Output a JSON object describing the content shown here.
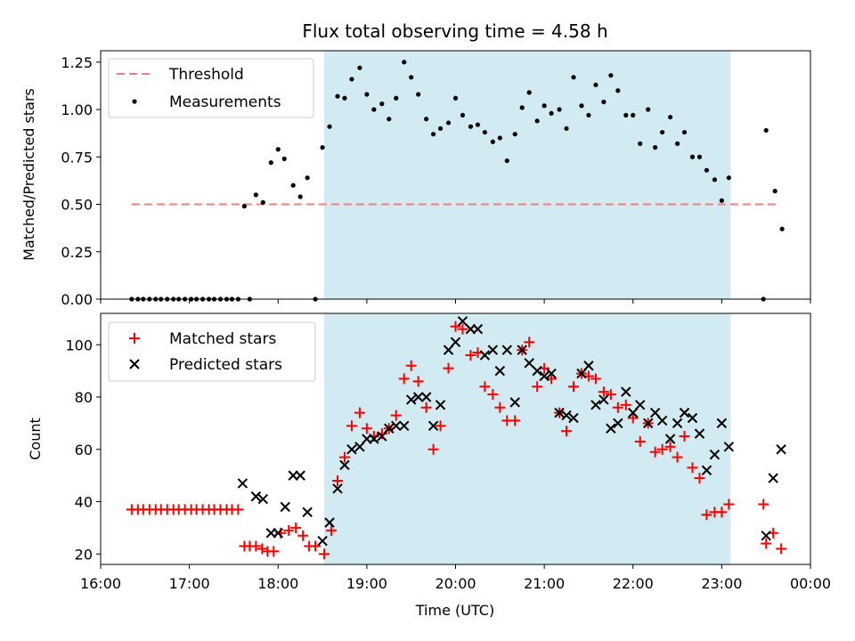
{
  "chart_data": {
    "title": "Flux total observing time = 4.58 h",
    "xlabel": "Time (UTC)",
    "x_unit": "hours UTC",
    "xlim": [
      16.0,
      24.0
    ],
    "x_ticks": [
      {
        "value": 16,
        "label": "16:00"
      },
      {
        "value": 17,
        "label": "17:00"
      },
      {
        "value": 18,
        "label": "18:00"
      },
      {
        "value": 19,
        "label": "19:00"
      },
      {
        "value": 20,
        "label": "20:00"
      },
      {
        "value": 21,
        "label": "21:00"
      },
      {
        "value": 22,
        "label": "22:00"
      },
      {
        "value": 23,
        "label": "23:00"
      },
      {
        "value": 24,
        "label": "00:00"
      }
    ],
    "shaded_span": {
      "start": 18.52,
      "end": 23.1,
      "color": "#add8e6"
    },
    "panels": [
      {
        "type": "scatter",
        "ylabel": "Matched/Predicted stars",
        "ylim": [
          0,
          1.31
        ],
        "y_ticks": [
          "0.00",
          "0.25",
          "0.50",
          "0.75",
          "1.00",
          "1.25"
        ],
        "y_tick_values": [
          0,
          0.25,
          0.5,
          0.75,
          1.0,
          1.25
        ],
        "legend": [
          {
            "label": "Threshold",
            "marker": "dashed-line",
            "color": "#f08080"
          },
          {
            "label": "Measurements",
            "marker": "dot",
            "color": "#000000"
          }
        ],
        "legend_position": "top-left",
        "threshold": {
          "value": 0.5,
          "x_range": [
            16.35,
            23.65
          ],
          "color": "#f08080"
        },
        "measurements": [
          [
            16.35,
            0
          ],
          [
            16.42,
            0
          ],
          [
            16.48,
            0
          ],
          [
            16.55,
            0
          ],
          [
            16.62,
            0
          ],
          [
            16.68,
            0
          ],
          [
            16.75,
            0
          ],
          [
            16.82,
            0
          ],
          [
            16.88,
            0
          ],
          [
            16.95,
            0
          ],
          [
            17.02,
            0
          ],
          [
            17.08,
            0
          ],
          [
            17.15,
            0
          ],
          [
            17.22,
            0
          ],
          [
            17.28,
            0
          ],
          [
            17.35,
            0
          ],
          [
            17.42,
            0
          ],
          [
            17.48,
            0
          ],
          [
            17.55,
            0
          ],
          [
            17.62,
            0.49
          ],
          [
            17.68,
            0
          ],
          [
            17.75,
            0.55
          ],
          [
            17.83,
            0.51
          ],
          [
            17.92,
            0.72
          ],
          [
            18.0,
            0.79
          ],
          [
            18.07,
            0.74
          ],
          [
            18.17,
            0.6
          ],
          [
            18.25,
            0.54
          ],
          [
            18.33,
            0.64
          ],
          [
            18.42,
            0
          ],
          [
            18.5,
            0.8
          ],
          [
            18.58,
            0.91
          ],
          [
            18.67,
            1.07
          ],
          [
            18.75,
            1.06
          ],
          [
            18.83,
            1.16
          ],
          [
            18.92,
            1.22
          ],
          [
            19.0,
            1.08
          ],
          [
            19.08,
            1.0
          ],
          [
            19.17,
            1.03
          ],
          [
            19.25,
            0.95
          ],
          [
            19.33,
            1.06
          ],
          [
            19.42,
            1.25
          ],
          [
            19.5,
            1.17
          ],
          [
            19.58,
            1.08
          ],
          [
            19.67,
            0.95
          ],
          [
            19.75,
            0.87
          ],
          [
            19.83,
            0.9
          ],
          [
            19.92,
            0.93
          ],
          [
            20.0,
            1.06
          ],
          [
            20.08,
            0.97
          ],
          [
            20.17,
            0.91
          ],
          [
            20.25,
            0.92
          ],
          [
            20.33,
            0.88
          ],
          [
            20.42,
            0.83
          ],
          [
            20.5,
            0.85
          ],
          [
            20.58,
            0.73
          ],
          [
            20.67,
            0.87
          ],
          [
            20.75,
            1.01
          ],
          [
            20.83,
            1.09
          ],
          [
            20.92,
            0.94
          ],
          [
            21.0,
            1.02
          ],
          [
            21.08,
            0.98
          ],
          [
            21.17,
            1.0
          ],
          [
            21.25,
            0.9
          ],
          [
            21.33,
            1.17
          ],
          [
            21.42,
            1.02
          ],
          [
            21.5,
            0.97
          ],
          [
            21.58,
            1.13
          ],
          [
            21.67,
            1.04
          ],
          [
            21.75,
            1.18
          ],
          [
            21.83,
            1.1
          ],
          [
            21.92,
            0.97
          ],
          [
            22.0,
            0.97
          ],
          [
            22.08,
            0.82
          ],
          [
            22.17,
            1.0
          ],
          [
            22.25,
            0.8
          ],
          [
            22.33,
            0.88
          ],
          [
            22.42,
            0.96
          ],
          [
            22.5,
            0.82
          ],
          [
            22.58,
            0.88
          ],
          [
            22.67,
            0.75
          ],
          [
            22.75,
            0.75
          ],
          [
            22.83,
            0.68
          ],
          [
            22.92,
            0.63
          ],
          [
            23.0,
            0.52
          ],
          [
            23.08,
            0.64
          ],
          [
            23.47,
            0
          ],
          [
            23.5,
            0.89
          ],
          [
            23.6,
            0.57
          ],
          [
            23.68,
            0.37
          ]
        ]
      },
      {
        "type": "scatter",
        "ylabel": "Count",
        "ylim": [
          16,
          112
        ],
        "y_ticks": [
          "20",
          "40",
          "60",
          "80",
          "100"
        ],
        "y_tick_values": [
          20,
          40,
          60,
          80,
          100
        ],
        "legend": [
          {
            "label": "Matched stars",
            "marker": "plus",
            "color": "#ff0000"
          },
          {
            "label": "Predicted stars",
            "marker": "x",
            "color": "#000000"
          }
        ],
        "legend_position": "top-left",
        "matched": [
          [
            16.35,
            37
          ],
          [
            16.42,
            37
          ],
          [
            16.48,
            37
          ],
          [
            16.55,
            37
          ],
          [
            16.62,
            37
          ],
          [
            16.68,
            37
          ],
          [
            16.75,
            37
          ],
          [
            16.82,
            37
          ],
          [
            16.88,
            37
          ],
          [
            16.95,
            37
          ],
          [
            17.02,
            37
          ],
          [
            17.08,
            37
          ],
          [
            17.15,
            37
          ],
          [
            17.22,
            37
          ],
          [
            17.28,
            37
          ],
          [
            17.35,
            37
          ],
          [
            17.42,
            37
          ],
          [
            17.48,
            37
          ],
          [
            17.55,
            37
          ],
          [
            17.62,
            23
          ],
          [
            17.68,
            23
          ],
          [
            17.75,
            23
          ],
          [
            17.82,
            22
          ],
          [
            17.88,
            21
          ],
          [
            17.95,
            21
          ],
          [
            18.03,
            28
          ],
          [
            18.12,
            29
          ],
          [
            18.2,
            30
          ],
          [
            18.28,
            27
          ],
          [
            18.35,
            23
          ],
          [
            18.42,
            23
          ],
          [
            18.52,
            20
          ],
          [
            18.6,
            29
          ],
          [
            18.67,
            48
          ],
          [
            18.75,
            57
          ],
          [
            18.83,
            69
          ],
          [
            18.92,
            74
          ],
          [
            19.0,
            68
          ],
          [
            19.08,
            65
          ],
          [
            19.17,
            66
          ],
          [
            19.25,
            68
          ],
          [
            19.33,
            73
          ],
          [
            19.42,
            87
          ],
          [
            19.5,
            92
          ],
          [
            19.58,
            86
          ],
          [
            19.67,
            76
          ],
          [
            19.75,
            60
          ],
          [
            19.83,
            69
          ],
          [
            19.92,
            91
          ],
          [
            20.0,
            107
          ],
          [
            20.08,
            106
          ],
          [
            20.17,
            96
          ],
          [
            20.25,
            97
          ],
          [
            20.33,
            84
          ],
          [
            20.42,
            81
          ],
          [
            20.5,
            76
          ],
          [
            20.58,
            71
          ],
          [
            20.67,
            71
          ],
          [
            20.75,
            98
          ],
          [
            20.83,
            101
          ],
          [
            20.92,
            84
          ],
          [
            21.0,
            91
          ],
          [
            21.08,
            87
          ],
          [
            21.17,
            74
          ],
          [
            21.25,
            67
          ],
          [
            21.33,
            84
          ],
          [
            21.42,
            89
          ],
          [
            21.5,
            88
          ],
          [
            21.58,
            87
          ],
          [
            21.67,
            82
          ],
          [
            21.75,
            81
          ],
          [
            21.83,
            76
          ],
          [
            21.92,
            77
          ],
          [
            22.0,
            72
          ],
          [
            22.08,
            63
          ],
          [
            22.17,
            70
          ],
          [
            22.25,
            59
          ],
          [
            22.33,
            60
          ],
          [
            22.42,
            61
          ],
          [
            22.5,
            57
          ],
          [
            22.58,
            65
          ],
          [
            22.67,
            53
          ],
          [
            22.75,
            49
          ],
          [
            22.83,
            35
          ],
          [
            22.92,
            36
          ],
          [
            23.0,
            36
          ],
          [
            23.08,
            39
          ],
          [
            23.47,
            39
          ],
          [
            23.5,
            24
          ],
          [
            23.58,
            28
          ],
          [
            23.67,
            22
          ]
        ],
        "predicted": [
          [
            17.6,
            47
          ],
          [
            17.75,
            42
          ],
          [
            17.83,
            41
          ],
          [
            17.92,
            28
          ],
          [
            18.0,
            28
          ],
          [
            18.08,
            38
          ],
          [
            18.17,
            50
          ],
          [
            18.25,
            50
          ],
          [
            18.33,
            36
          ],
          [
            18.5,
            25
          ],
          [
            18.58,
            32
          ],
          [
            18.67,
            45
          ],
          [
            18.75,
            54
          ],
          [
            18.83,
            60
          ],
          [
            18.92,
            61
          ],
          [
            19.0,
            64
          ],
          [
            19.08,
            64
          ],
          [
            19.17,
            65
          ],
          [
            19.25,
            68
          ],
          [
            19.33,
            69
          ],
          [
            19.42,
            69
          ],
          [
            19.5,
            79
          ],
          [
            19.58,
            80
          ],
          [
            19.67,
            80
          ],
          [
            19.75,
            69
          ],
          [
            19.83,
            77
          ],
          [
            19.92,
            98
          ],
          [
            20.0,
            101
          ],
          [
            20.08,
            109
          ],
          [
            20.17,
            106
          ],
          [
            20.25,
            106
          ],
          [
            20.33,
            96
          ],
          [
            20.42,
            98
          ],
          [
            20.5,
            90
          ],
          [
            20.58,
            98
          ],
          [
            20.67,
            78
          ],
          [
            20.75,
            98
          ],
          [
            20.83,
            93
          ],
          [
            20.92,
            90
          ],
          [
            21.0,
            88
          ],
          [
            21.08,
            89
          ],
          [
            21.17,
            74
          ],
          [
            21.25,
            73
          ],
          [
            21.33,
            72
          ],
          [
            21.42,
            89
          ],
          [
            21.5,
            92
          ],
          [
            21.58,
            77
          ],
          [
            21.67,
            79
          ],
          [
            21.75,
            68
          ],
          [
            21.83,
            70
          ],
          [
            21.92,
            82
          ],
          [
            22.0,
            74
          ],
          [
            22.08,
            77
          ],
          [
            22.17,
            70
          ],
          [
            22.25,
            74
          ],
          [
            22.33,
            71
          ],
          [
            22.42,
            64
          ],
          [
            22.5,
            70
          ],
          [
            22.58,
            74
          ],
          [
            22.67,
            72
          ],
          [
            22.75,
            66
          ],
          [
            22.83,
            52
          ],
          [
            22.92,
            58
          ],
          [
            23.0,
            70
          ],
          [
            23.08,
            61
          ],
          [
            23.5,
            27
          ],
          [
            23.58,
            49
          ],
          [
            23.67,
            60
          ]
        ]
      }
    ]
  }
}
